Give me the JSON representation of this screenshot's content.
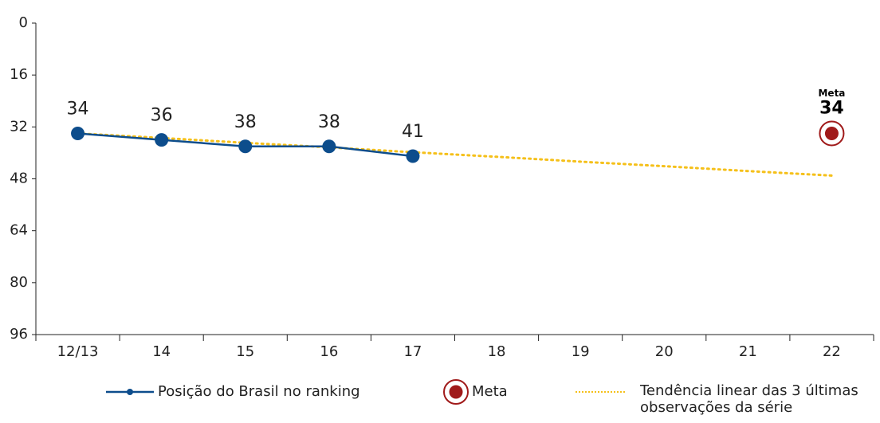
{
  "chart_data": {
    "type": "line",
    "categories": [
      "12/13",
      "14",
      "15",
      "16",
      "17",
      "18",
      "19",
      "20",
      "21",
      "22"
    ],
    "series": [
      {
        "name": "Posição do Brasil no ranking",
        "color": "#0d4d8c",
        "values": [
          34,
          36,
          38,
          38,
          41,
          null,
          null,
          null,
          null,
          null
        ]
      },
      {
        "name": "Meta",
        "color": "#a01a1a",
        "values": [
          null,
          null,
          null,
          null,
          null,
          null,
          null,
          null,
          null,
          34
        ]
      },
      {
        "name": "Tendência linear das 3 últimas observações da série",
        "color": "#f5c01a",
        "values": [
          34,
          35.4,
          36.9,
          38.3,
          39.8,
          41.2,
          42.7,
          44.1,
          45.6,
          47
        ]
      }
    ],
    "ylim": [
      0,
      96
    ],
    "yticks": [
      0,
      16,
      32,
      48,
      64,
      80,
      96
    ],
    "y_inverted": true
  }
}
